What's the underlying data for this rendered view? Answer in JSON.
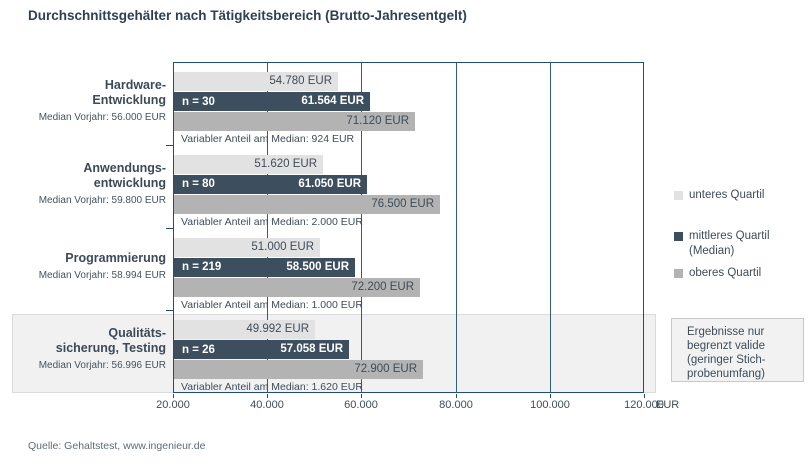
{
  "title": "Durchschnittsgehälter nach Tätigkeitsbereich (Brutto-Jahresentgelt)",
  "source": "Quelle: Gehaltstest, www.ingenieur.de",
  "colors": {
    "lower_quartile": "#e2e2e2",
    "median_quartile": "#3d4f5e",
    "upper_quartile": "#b3b3b3",
    "plot_border": "#1e4f72",
    "highlight_background": "#f1f1f1"
  },
  "chart_data": {
    "type": "bar",
    "orientation": "horizontal",
    "title": "Durchschnittsgehälter nach Tätigkeitsbereich (Brutto-Jahresentgelt)",
    "xlim": [
      20000,
      120000
    ],
    "grid": true,
    "legend_position": "right",
    "x_unit_label": "EUR",
    "x_ticks": [
      {
        "value": 20000,
        "label": "20.000"
      },
      {
        "value": 40000,
        "label": "40.000"
      },
      {
        "value": 60000,
        "label": "60.000"
      },
      {
        "value": 80000,
        "label": "80.000"
      },
      {
        "value": 100000,
        "label": "100.000"
      },
      {
        "value": 120000,
        "label": "120.000"
      }
    ],
    "series_names": [
      "unteres Quartil",
      "mittleres Quartil (Median)",
      "oberes Quartil"
    ],
    "groups": [
      {
        "name_lines": [
          "Hardware-",
          "Entwicklung"
        ],
        "median_prior_year": "Median Vorjahr: 56.000 EUR",
        "sample_size_label": "n = 30",
        "lower_quartile": {
          "value": 54780,
          "label": "54.780 EUR"
        },
        "median": {
          "value": 61564,
          "label": "61.564 EUR"
        },
        "upper_quartile": {
          "value": 71120,
          "label": "71.120 EUR"
        },
        "caption": "Variabler Anteil am Median: 924 EUR",
        "highlighted": false
      },
      {
        "name_lines": [
          "Anwendungs-",
          "entwicklung"
        ],
        "median_prior_year": "Median Vorjahr: 59.800 EUR",
        "sample_size_label": "n = 80",
        "lower_quartile": {
          "value": 51620,
          "label": "51.620 EUR"
        },
        "median": {
          "value": 61050,
          "label": "61.050 EUR"
        },
        "upper_quartile": {
          "value": 76500,
          "label": "76.500 EUR"
        },
        "caption": "Variabler Anteil am Median: 2.000 EUR",
        "highlighted": false
      },
      {
        "name_lines": [
          "Programmierung"
        ],
        "median_prior_year": "Median Vorjahr: 58.994 EUR",
        "sample_size_label": "n = 219",
        "lower_quartile": {
          "value": 51000,
          "label": "51.000 EUR"
        },
        "median": {
          "value": 58500,
          "label": "58.500 EUR"
        },
        "upper_quartile": {
          "value": 72200,
          "label": "72.200 EUR"
        },
        "caption": "Variabler Anteil am Median: 1.000 EUR",
        "highlighted": false
      },
      {
        "name_lines": [
          "Qualitäts-",
          "sicherung, Testing"
        ],
        "median_prior_year": "Median Vorjahr: 56.996 EUR",
        "sample_size_label": "n = 26",
        "lower_quartile": {
          "value": 49992,
          "label": "49.992 EUR"
        },
        "median": {
          "value": 57058,
          "label": "57.058 EUR"
        },
        "upper_quartile": {
          "value": 72900,
          "label": "72.900 EUR"
        },
        "caption": "Variabler Anteil am Median: 1.620 EUR",
        "highlighted": true
      }
    ],
    "legend": [
      {
        "label_lines": [
          "unteres Quartil"
        ],
        "color": "#e2e2e2"
      },
      {
        "label_lines": [
          "mittleres Quartil",
          "(Median)"
        ],
        "color": "#3d4f5e"
      },
      {
        "label_lines": [
          "oberes Quartil"
        ],
        "color": "#b3b3b3"
      }
    ],
    "note_box_lines": [
      "Ergebnisse nur",
      "begrenzt valide",
      "(geringer Stich-",
      "probenumfang)"
    ]
  }
}
